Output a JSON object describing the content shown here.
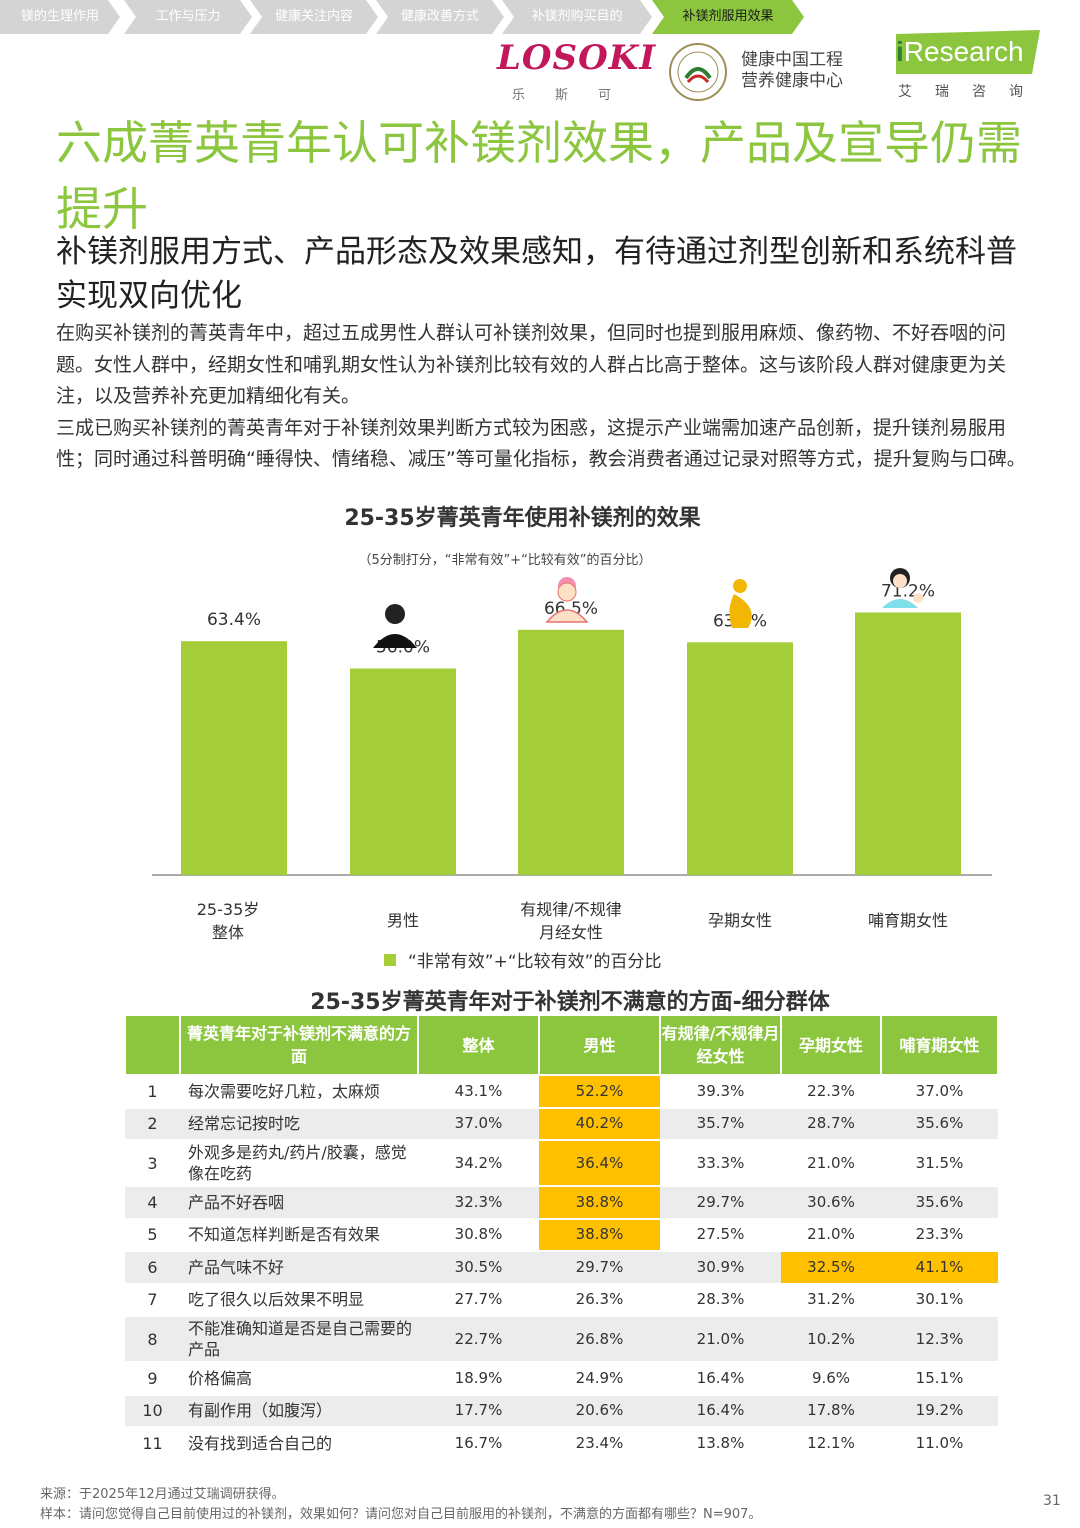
{
  "nav": {
    "items": [
      "镁的生理作用",
      "工作与压力",
      "健康关注内容",
      "健康改善方式",
      "补镁剂购买目的",
      "补镁剂服用效果"
    ],
    "active_index": 5
  },
  "logos": {
    "losoki": "LOSOKI",
    "losoki_sub": "乐斯可",
    "center_line1": "健康中国工程",
    "center_line2": "营养健康中心",
    "iresearch": "Research",
    "iresearch_i": "i",
    "iresearch_sub": "艾瑞咨询"
  },
  "title": "六成菁英青年认可补镁剂效果，产品及宣导仍需提升",
  "subtitle": "补镁剂服用方式、产品形态及效果感知，有待通过剂型创新和系统科普实现双向优化",
  "paragraphs": [
    "在购买补镁剂的菁英青年中，超过五成男性人群认可补镁剂效果，但同时也提到服用麻烦、像药物、不好吞咽的问题。女性人群中，经期女性和哺乳期女性认为补镁剂比较有效的人群占比高于整体。这与该阶段人群对健康更为关注，以及营养补充更加精细化有关。",
    "三成已购买补镁剂的菁英青年对于补镁剂效果判断方式较为困惑，这提示产业端需加速产品创新，提升镁剂易服用性；同时通过科普明确“睡得快、情绪稳、减压”等可量化指标，教会消费者通过记录对照等方式，提升复购与口碑。"
  ],
  "chart_data": {
    "type": "bar",
    "title": "25-35岁菁英青年使用补镁剂的效果",
    "note": "（5分制打分，“非常有效”+“比较有效”的百分比）",
    "categories": [
      "25-35岁\n整体",
      "男性",
      "有规律/不规律\n月经女性",
      "孕期女性",
      "哺育期女性"
    ],
    "category_icons": [
      "",
      "male-icon",
      "menstrual-woman-icon",
      "pregnant-icon",
      "nursing-mother-icon"
    ],
    "series": [
      {
        "name": "“非常有效”+“比较有效”的百分比",
        "values": [
          63.4,
          56.0,
          66.5,
          63.1,
          71.2
        ],
        "color": "#a5cd39"
      }
    ],
    "value_labels": [
      "63.4%",
      "56.0%",
      "66.5%",
      "63.1%",
      "71.2%"
    ],
    "ylim": [
      0,
      80
    ],
    "legend_position": "bottom"
  },
  "table": {
    "title": "25-35岁菁英青年对于补镁剂不满意的方面-细分群体",
    "headers": [
      "",
      "菁英青年对于补镁剂不满意的方面",
      "整体",
      "男性",
      "有规律/不规律月经女性",
      "孕期女性",
      "哺育期女性"
    ],
    "highlight_color": "#ffc000",
    "rows": [
      {
        "no": "1",
        "item": "每次需要吃好几粒，太麻烦",
        "values": [
          "43.1%",
          "52.2%",
          "39.3%",
          "22.3%",
          "37.0%"
        ],
        "highlight": [
          1
        ]
      },
      {
        "no": "2",
        "item": "经常忘记按时吃",
        "values": [
          "37.0%",
          "40.2%",
          "35.7%",
          "28.7%",
          "35.6%"
        ],
        "highlight": [
          1
        ]
      },
      {
        "no": "3",
        "item": "外观多是药丸/药片/胶囊，感觉像在吃药",
        "values": [
          "34.2%",
          "36.4%",
          "33.3%",
          "21.0%",
          "31.5%"
        ],
        "highlight": [
          1
        ]
      },
      {
        "no": "4",
        "item": "产品不好吞咽",
        "values": [
          "32.3%",
          "38.8%",
          "29.7%",
          "30.6%",
          "35.6%"
        ],
        "highlight": [
          1
        ]
      },
      {
        "no": "5",
        "item": "不知道怎样判断是否有效果",
        "values": [
          "30.8%",
          "38.8%",
          "27.5%",
          "21.0%",
          "23.3%"
        ],
        "highlight": [
          1
        ]
      },
      {
        "no": "6",
        "item": "产品气味不好",
        "values": [
          "30.5%",
          "29.7%",
          "30.9%",
          "32.5%",
          "41.1%"
        ],
        "highlight": [
          3,
          4
        ]
      },
      {
        "no": "7",
        "item": "吃了很久以后效果不明显",
        "values": [
          "27.7%",
          "26.3%",
          "28.3%",
          "31.2%",
          "30.1%"
        ],
        "highlight": []
      },
      {
        "no": "8",
        "item": "不能准确知道是否是自己需要的产品",
        "values": [
          "22.7%",
          "26.8%",
          "21.0%",
          "10.2%",
          "12.3%"
        ],
        "highlight": []
      },
      {
        "no": "9",
        "item": "价格偏高",
        "values": [
          "18.9%",
          "24.9%",
          "16.4%",
          "9.6%",
          "15.1%"
        ],
        "highlight": []
      },
      {
        "no": "10",
        "item": "有副作用（如腹泻）",
        "values": [
          "17.7%",
          "20.6%",
          "16.4%",
          "17.8%",
          "19.2%"
        ],
        "highlight": []
      },
      {
        "no": "11",
        "item": "没有找到适合自己的",
        "values": [
          "16.7%",
          "23.4%",
          "13.8%",
          "12.1%",
          "11.0%"
        ],
        "highlight": []
      }
    ]
  },
  "footer": {
    "source": "来源：于2025年12月通过艾瑞调研获得。",
    "sample": "样本：请问您觉得自己目前使用过的补镁剂，效果如何？请问您对自己目前服用的补镁剂，不满意的方面都有哪些？N=907。"
  },
  "page_number": "31"
}
